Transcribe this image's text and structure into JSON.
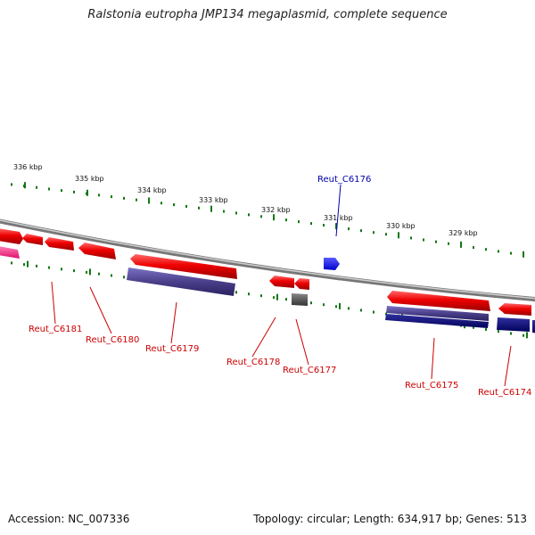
{
  "title": "Ralstonia eutropha JMP134 megaplasmid, complete sequence",
  "accession_text": "Accession: NC_007336",
  "summary_text": "Topology: circular; Length: 634,917 bp; Genes: 513",
  "colors": {
    "forward_gene": "#ee0000",
    "reverse_gene": "#4a3f8a",
    "reverse_gene_dark": "#000070",
    "blue_gene": "#0000ee",
    "gray_gene": "#555555",
    "pink_gene": "#ff2a8a",
    "backbone": "#888888",
    "tick": "#117711",
    "label_red": "#cc0000",
    "label_blue": "#0000aa"
  },
  "scale": {
    "tick_labels": [
      "336 kbp",
      "335 kbp",
      "334 kbp",
      "333 kbp",
      "332 kbp",
      "331 kbp",
      "330 kbp",
      "329 kbp"
    ]
  },
  "genes": {
    "reut_c6181": "Reut_C6181",
    "reut_c6180": "Reut_C6180",
    "reut_c6179": "Reut_C6179",
    "reut_c6178": "Reut_C6178",
    "reut_c6177": "Reut_C6177",
    "reut_c6176": "Reut_C6176",
    "reut_c6175": "Reut_C6175",
    "reut_c6174": "Reut_C6174"
  }
}
